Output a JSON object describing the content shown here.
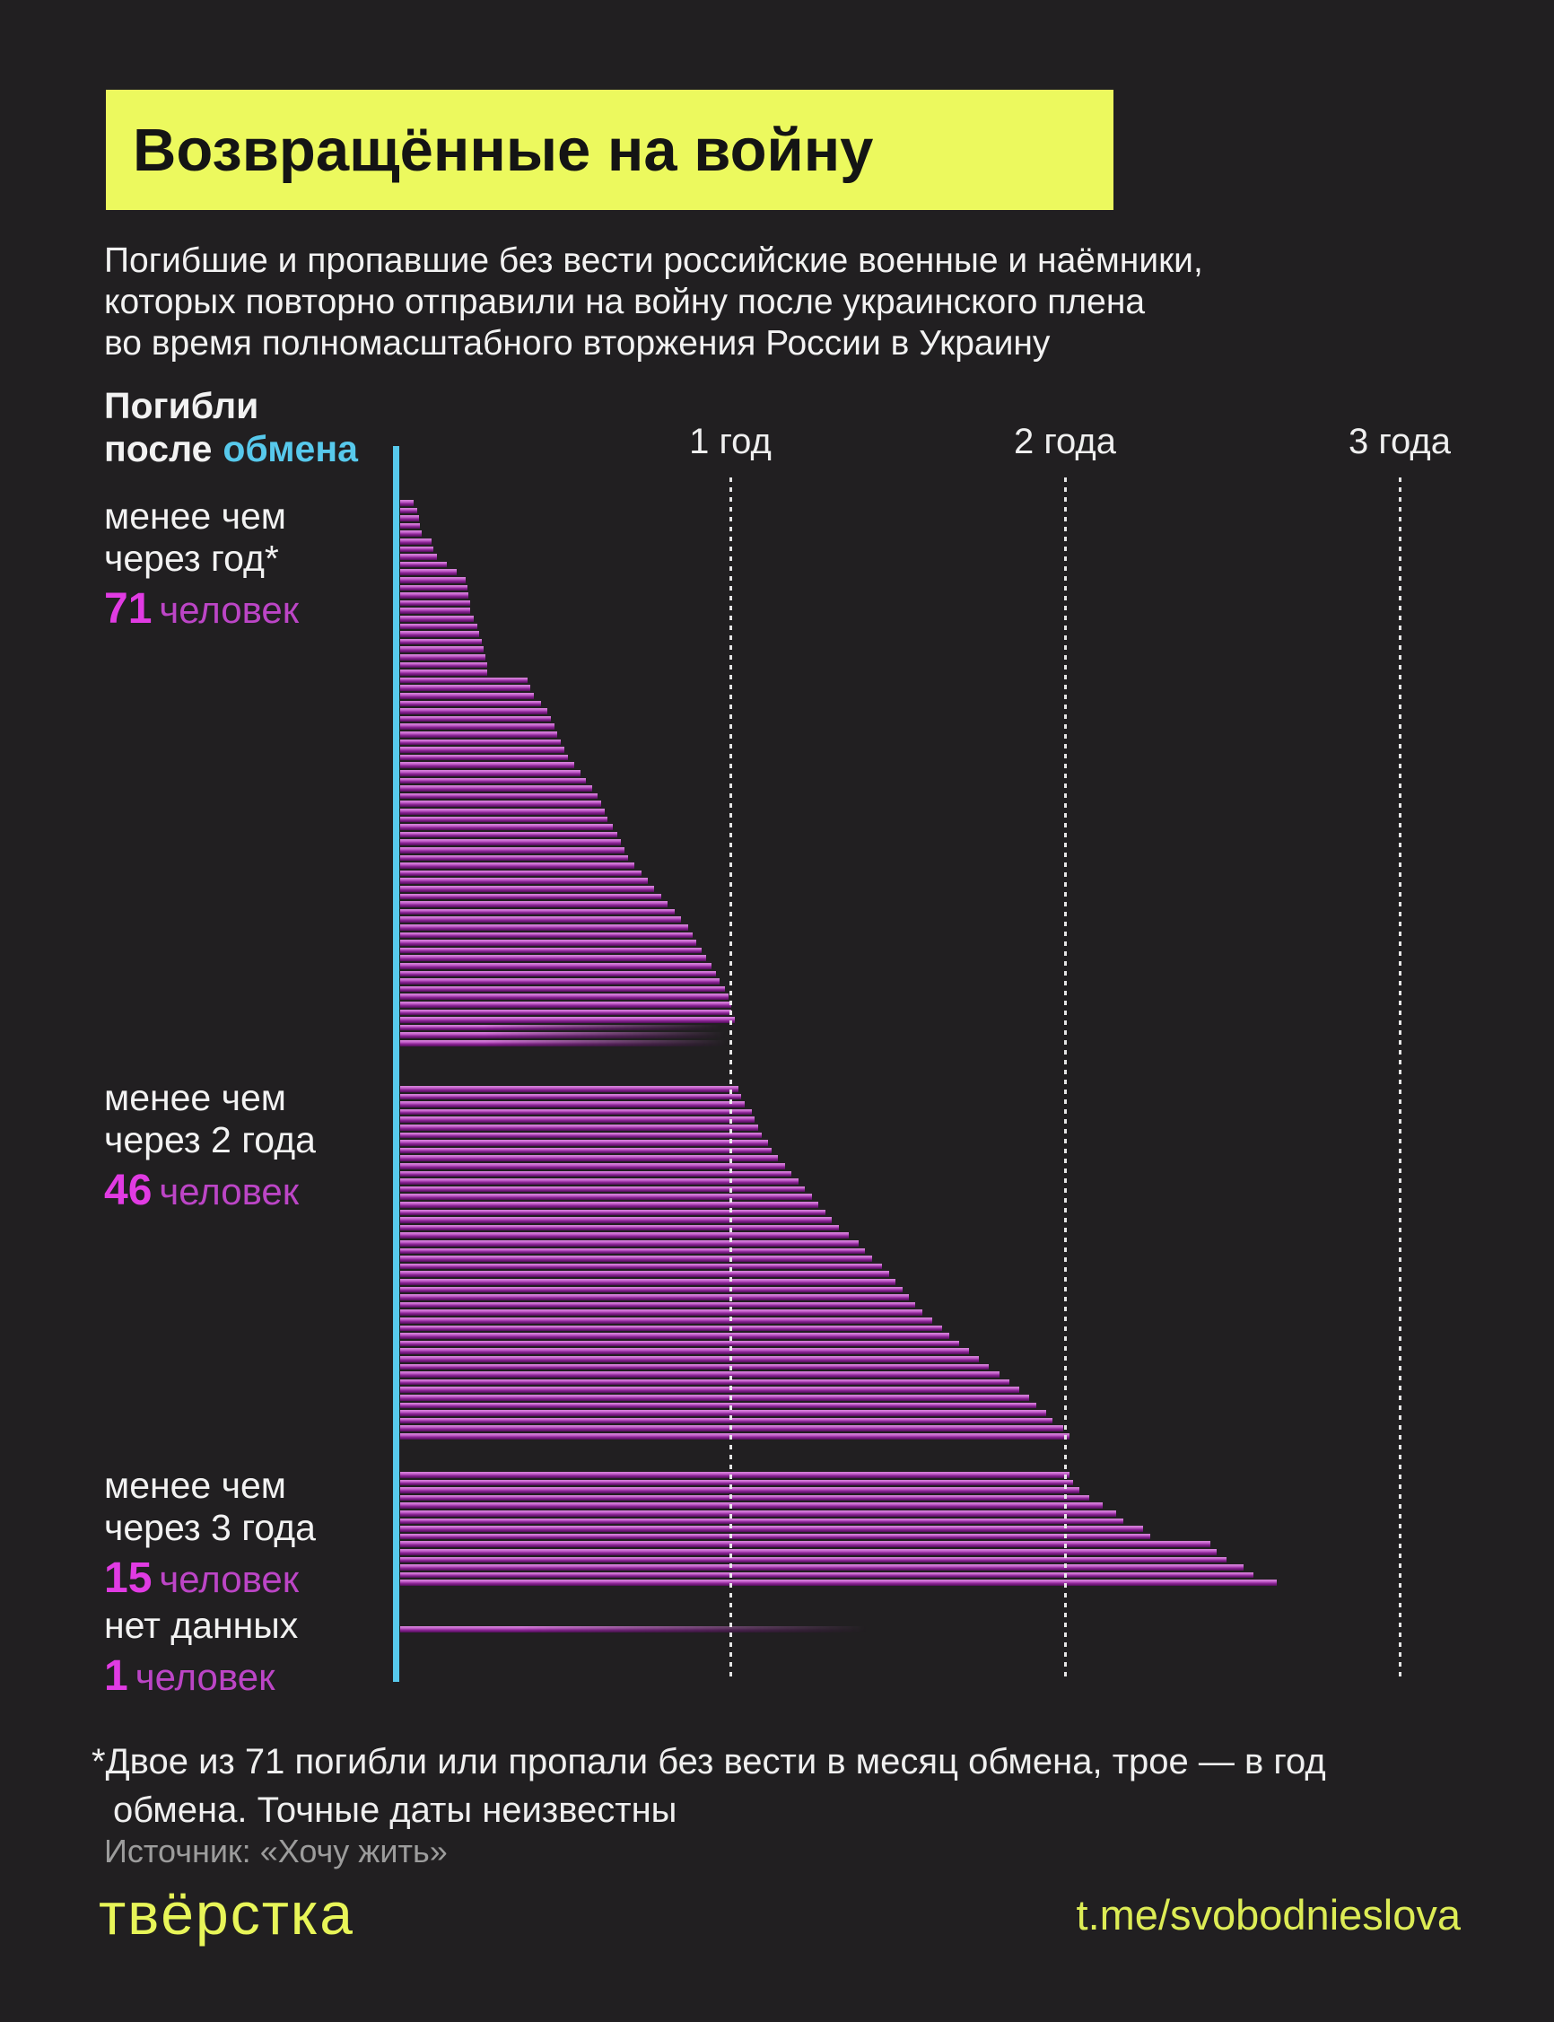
{
  "title": "Возвращённые на войну",
  "subtitle_lines": [
    "Погибшие и пропавшие без вести российские военные и наёмники,",
    "которых повторно отправили на войну после украинского плена",
    "во время полномасштабного вторжения России в Украину"
  ],
  "colors": {
    "background": "#211f21",
    "accent_yellow": "#ecf95e",
    "accent_cyan": "#57c9ec",
    "magenta_number": "#e13be3",
    "magenta_word": "#bc45c6",
    "bar_light": "#d988dc",
    "bar_dark": "#4f0e57",
    "text_white": "#f2f2f2",
    "text_gray": "#9c9c9c"
  },
  "chart_data": {
    "type": "bar",
    "orientation": "horizontal",
    "title": "Погибли после обмена",
    "header": {
      "white_part": "Погибли\nпосле",
      "accent_part": "обмена"
    },
    "value_unit": "years survived after prisoner exchange",
    "x_range_years": [
      0,
      3.45
    ],
    "grid": true,
    "x_ticks": [
      {
        "label": "1 год",
        "year": 1
      },
      {
        "label": "2 года",
        "year": 2
      },
      {
        "label": "3 года",
        "year": 3
      }
    ],
    "groups": [
      {
        "id": "under-1-year",
        "label_lines": [
          "менее чем",
          "через год*"
        ],
        "count": "71",
        "count_word": "человек",
        "faded_tail": 3,
        "values": [
          0.04,
          0.05,
          0.055,
          0.06,
          0.065,
          0.095,
          0.1,
          0.11,
          0.14,
          0.17,
          0.195,
          0.2,
          0.205,
          0.21,
          0.21,
          0.22,
          0.23,
          0.235,
          0.245,
          0.25,
          0.255,
          0.26,
          0.26,
          0.38,
          0.39,
          0.4,
          0.42,
          0.44,
          0.45,
          0.46,
          0.47,
          0.48,
          0.49,
          0.5,
          0.52,
          0.54,
          0.555,
          0.575,
          0.59,
          0.6,
          0.61,
          0.62,
          0.635,
          0.65,
          0.66,
          0.67,
          0.68,
          0.7,
          0.72,
          0.74,
          0.76,
          0.78,
          0.8,
          0.82,
          0.84,
          0.86,
          0.875,
          0.885,
          0.9,
          0.915,
          0.93,
          0.945,
          0.955,
          0.97,
          0.98,
          0.99,
          0.99,
          1.0,
          1.0,
          1.01,
          1.02
        ]
      },
      {
        "id": "under-2-years",
        "label_lines": [
          "менее чем",
          "через 2 года"
        ],
        "count": "46",
        "count_word": "человек",
        "faded_tail": 0,
        "values": [
          1.01,
          1.02,
          1.03,
          1.05,
          1.06,
          1.07,
          1.08,
          1.1,
          1.11,
          1.13,
          1.15,
          1.17,
          1.19,
          1.21,
          1.23,
          1.25,
          1.27,
          1.29,
          1.31,
          1.34,
          1.37,
          1.39,
          1.41,
          1.44,
          1.46,
          1.48,
          1.5,
          1.52,
          1.54,
          1.56,
          1.59,
          1.62,
          1.64,
          1.67,
          1.7,
          1.73,
          1.76,
          1.79,
          1.82,
          1.85,
          1.88,
          1.9,
          1.93,
          1.95,
          1.98,
          2.0
        ]
      },
      {
        "id": "under-3-years",
        "label_lines": [
          "менее чем",
          "через 3 года"
        ],
        "count": "15",
        "count_word": "человек",
        "faded_tail": 0,
        "values": [
          2.0,
          2.01,
          2.03,
          2.06,
          2.1,
          2.14,
          2.16,
          2.22,
          2.24,
          2.42,
          2.44,
          2.47,
          2.52,
          2.55,
          2.62
        ]
      },
      {
        "id": "no-data",
        "label_lines": [
          "нет данных"
        ],
        "count": "1",
        "count_word": "человек",
        "faded_tail": 1,
        "values": [
          1.45
        ]
      }
    ]
  },
  "footnote_lines": [
    "*Двое из 71 погибли или пропали без вести в месяц обмена, трое — в год",
    "обмена. Точные даты неизвестны"
  ],
  "source": "Источник: «Хочу жить»",
  "logo": "твёрстка",
  "link": "t.me/svobodnieslova"
}
